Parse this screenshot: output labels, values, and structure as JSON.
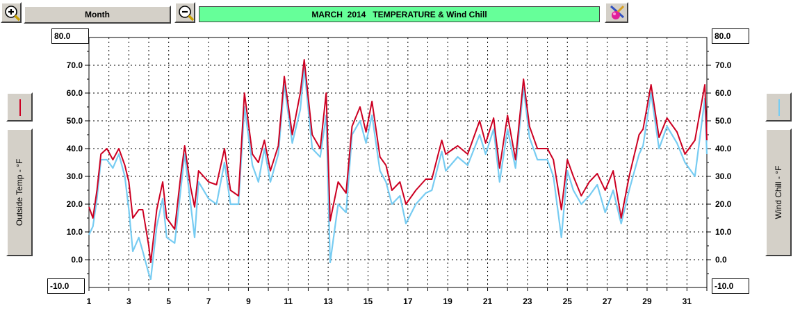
{
  "toolbar": {
    "period_label": "Month",
    "zoom_in_icon": "zoom-in-icon",
    "zoom_out_icon": "zoom-out-icon",
    "settings_icon": "paint-pencil-icon"
  },
  "colors": {
    "title_bg": "#66ff99",
    "temp": "#cc0022",
    "wind_chill": "#77ccf2"
  },
  "chart_data": {
    "type": "line",
    "title": "MARCH  2014   TEMPERATURE & Wind Chill",
    "x_tick_labels": [
      "1",
      "3",
      "5",
      "7",
      "9",
      "11",
      "13",
      "15",
      "17",
      "19",
      "21",
      "23",
      "25",
      "27",
      "29",
      "31"
    ],
    "xlim": [
      1,
      32
    ],
    "ylim": [
      -10,
      80
    ],
    "y_tick_labels": [
      "0.0",
      "10.0",
      "20.0",
      "30.0",
      "40.0",
      "50.0",
      "60.0",
      "70.0"
    ],
    "y_min_label": "-10.0",
    "y_max_label": "80.0",
    "ylabel_left": "Outside Temp - °F",
    "ylabel_right": "Wind Chill - °F",
    "grid": true,
    "series": [
      {
        "key": "outside_temp",
        "color": "#cc0022",
        "x": [
          1.0,
          1.2,
          1.4,
          1.6,
          1.9,
          2.2,
          2.5,
          2.8,
          3.0,
          3.2,
          3.5,
          3.7,
          4.0,
          4.1,
          4.4,
          4.7,
          4.9,
          5.3,
          5.6,
          5.8,
          6.1,
          6.3,
          6.5,
          7.0,
          7.4,
          7.8,
          8.1,
          8.5,
          8.8,
          9.2,
          9.5,
          9.8,
          10.1,
          10.5,
          10.8,
          11.2,
          11.6,
          11.8,
          12.2,
          12.6,
          12.9,
          13.1,
          13.5,
          13.9,
          14.2,
          14.6,
          14.9,
          15.2,
          15.6,
          15.9,
          16.2,
          16.6,
          16.9,
          17.4,
          17.9,
          18.2,
          18.7,
          18.9,
          19.5,
          20.0,
          20.6,
          20.9,
          21.3,
          21.6,
          22.0,
          22.4,
          22.8,
          23.1,
          23.5,
          24.0,
          24.3,
          24.7,
          25.0,
          25.3,
          25.7,
          26.1,
          26.5,
          26.9,
          27.3,
          27.7,
          28.1,
          28.6,
          28.8,
          29.2,
          29.6,
          30.0,
          30.5,
          30.9,
          31.4,
          31.9,
          32.0
        ],
        "y": [
          19,
          15,
          25,
          38,
          40,
          36,
          40,
          34,
          28,
          15,
          18,
          18,
          5,
          -1,
          18,
          28,
          15,
          11,
          30,
          41,
          26,
          19,
          32,
          28,
          27,
          40,
          25,
          23,
          60,
          38,
          35,
          43,
          32,
          41,
          66,
          45,
          60,
          72,
          45,
          40,
          60,
          14,
          28,
          24,
          48,
          55,
          46,
          57,
          37,
          34,
          25,
          28,
          20,
          25,
          29,
          29,
          43,
          38,
          41,
          38,
          50,
          42,
          51,
          33,
          52,
          36,
          65,
          48,
          40,
          40,
          36,
          18,
          36,
          30,
          23,
          28,
          31,
          25,
          32,
          15,
          30,
          45,
          47,
          63,
          44,
          51,
          46,
          38,
          43,
          63,
          43
        ]
      },
      {
        "key": "wind_chill",
        "color": "#77ccf2",
        "x": [
          1.0,
          1.2,
          1.4,
          1.6,
          1.9,
          2.2,
          2.5,
          2.8,
          3.0,
          3.2,
          3.5,
          3.7,
          4.0,
          4.1,
          4.4,
          4.7,
          4.9,
          5.3,
          5.6,
          5.8,
          6.1,
          6.3,
          6.5,
          7.0,
          7.4,
          7.8,
          8.1,
          8.5,
          8.8,
          9.2,
          9.5,
          9.8,
          10.1,
          10.5,
          10.8,
          11.2,
          11.6,
          11.8,
          12.2,
          12.6,
          12.9,
          13.1,
          13.5,
          13.9,
          14.2,
          14.6,
          14.9,
          15.2,
          15.6,
          15.9,
          16.2,
          16.6,
          16.9,
          17.4,
          17.9,
          18.2,
          18.7,
          18.9,
          19.5,
          20.0,
          20.6,
          20.9,
          21.3,
          21.6,
          22.0,
          22.4,
          22.8,
          23.1,
          23.5,
          24.0,
          24.3,
          24.7,
          25.0,
          25.3,
          25.7,
          26.1,
          26.5,
          26.9,
          27.3,
          27.7,
          28.1,
          28.6,
          28.8,
          29.2,
          29.6,
          30.0,
          30.5,
          30.9,
          31.4,
          31.9,
          32.0
        ],
        "y": [
          9,
          12,
          22,
          36,
          36,
          33,
          38,
          30,
          18,
          3,
          8,
          3,
          -5,
          -7,
          12,
          22,
          8,
          6,
          25,
          38,
          20,
          8,
          28,
          22,
          20,
          35,
          20,
          20,
          55,
          34,
          28,
          40,
          28,
          38,
          63,
          42,
          54,
          69,
          40,
          37,
          52,
          -1,
          20,
          17,
          45,
          50,
          42,
          52,
          32,
          28,
          20,
          23,
          13,
          20,
          24,
          25,
          39,
          32,
          37,
          34,
          45,
          38,
          47,
          28,
          47,
          33,
          62,
          44,
          36,
          36,
          30,
          8,
          32,
          25,
          20,
          23,
          27,
          17,
          25,
          13,
          25,
          38,
          41,
          60,
          40,
          48,
          42,
          35,
          30,
          58,
          38
        ]
      }
    ]
  }
}
